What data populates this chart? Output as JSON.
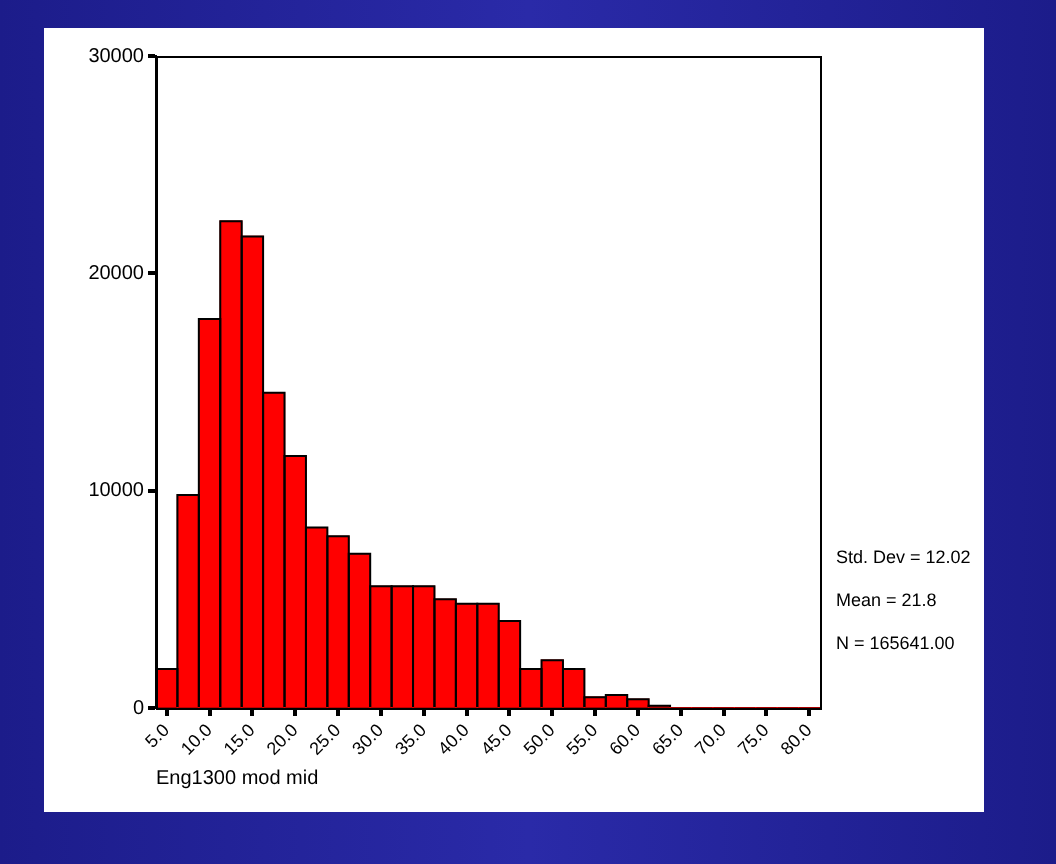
{
  "chart_data": {
    "type": "histogram",
    "xlabel": "Eng1300 mod mid",
    "bins": [
      3.75,
      6.25,
      8.75,
      11.25,
      13.75,
      16.25,
      18.75,
      21.25,
      23.75,
      26.25,
      28.75,
      31.25,
      33.75,
      36.25,
      38.75,
      41.25,
      43.75,
      46.25,
      48.75,
      51.25,
      53.75,
      56.25,
      58.75,
      61.25,
      63.75,
      66.25,
      68.75,
      71.25,
      73.75,
      76.25,
      78.75,
      81.25
    ],
    "values": [
      1800,
      9800,
      17900,
      22400,
      21700,
      14500,
      11600,
      8300,
      7900,
      7100,
      5600,
      5600,
      5600,
      5000,
      4800,
      4800,
      4000,
      1800,
      2200,
      1800,
      500,
      600,
      400,
      100,
      0,
      0,
      0,
      0,
      0,
      0,
      0
    ],
    "color": "#ff0000",
    "xlim": [
      3.75,
      81.25
    ],
    "xticks": [
      {
        "value": 5,
        "label": "5.0"
      },
      {
        "value": 10,
        "label": "10.0"
      },
      {
        "value": 15,
        "label": "15.0"
      },
      {
        "value": 20,
        "label": "20.0"
      },
      {
        "value": 25,
        "label": "25.0"
      },
      {
        "value": 30,
        "label": "30.0"
      },
      {
        "value": 35,
        "label": "35.0"
      },
      {
        "value": 40,
        "label": "40.0"
      },
      {
        "value": 45,
        "label": "45.0"
      },
      {
        "value": 50,
        "label": "50.0"
      },
      {
        "value": 55,
        "label": "55.0"
      },
      {
        "value": 60,
        "label": "60.0"
      },
      {
        "value": 65,
        "label": "65.0"
      },
      {
        "value": 70,
        "label": "70.0"
      },
      {
        "value": 75,
        "label": "75.0"
      },
      {
        "value": 80,
        "label": "80.0"
      }
    ],
    "ylim": [
      0,
      30000
    ],
    "yticks": [
      0,
      10000,
      20000,
      30000
    ],
    "grid": false,
    "legend": false,
    "annotations": [
      "Std. Dev = 12.02",
      "Mean = 21.8",
      "N = 165641.00"
    ]
  }
}
